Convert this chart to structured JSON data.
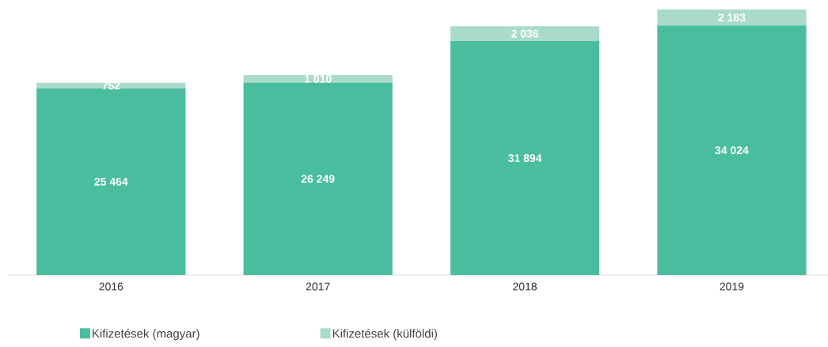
{
  "chart_data": {
    "type": "bar",
    "stacked": true,
    "categories": [
      "2016",
      "2017",
      "2018",
      "2019"
    ],
    "series": [
      {
        "name": "Kifizetések (magyar)",
        "color": "#4bbd9f",
        "values": [
          25464,
          26249,
          31894,
          34024
        ],
        "value_labels": [
          "25 464",
          "26 249",
          "31 894",
          "34 024"
        ]
      },
      {
        "name": "Kifizetések (külföldi)",
        "color": "#aadbc9",
        "values": [
          752,
          1010,
          2036,
          2183
        ],
        "value_labels": [
          "752",
          "1 010",
          "2 036",
          "2 183"
        ]
      }
    ],
    "legend": "bottom left",
    "tick_labels": "x"
  }
}
